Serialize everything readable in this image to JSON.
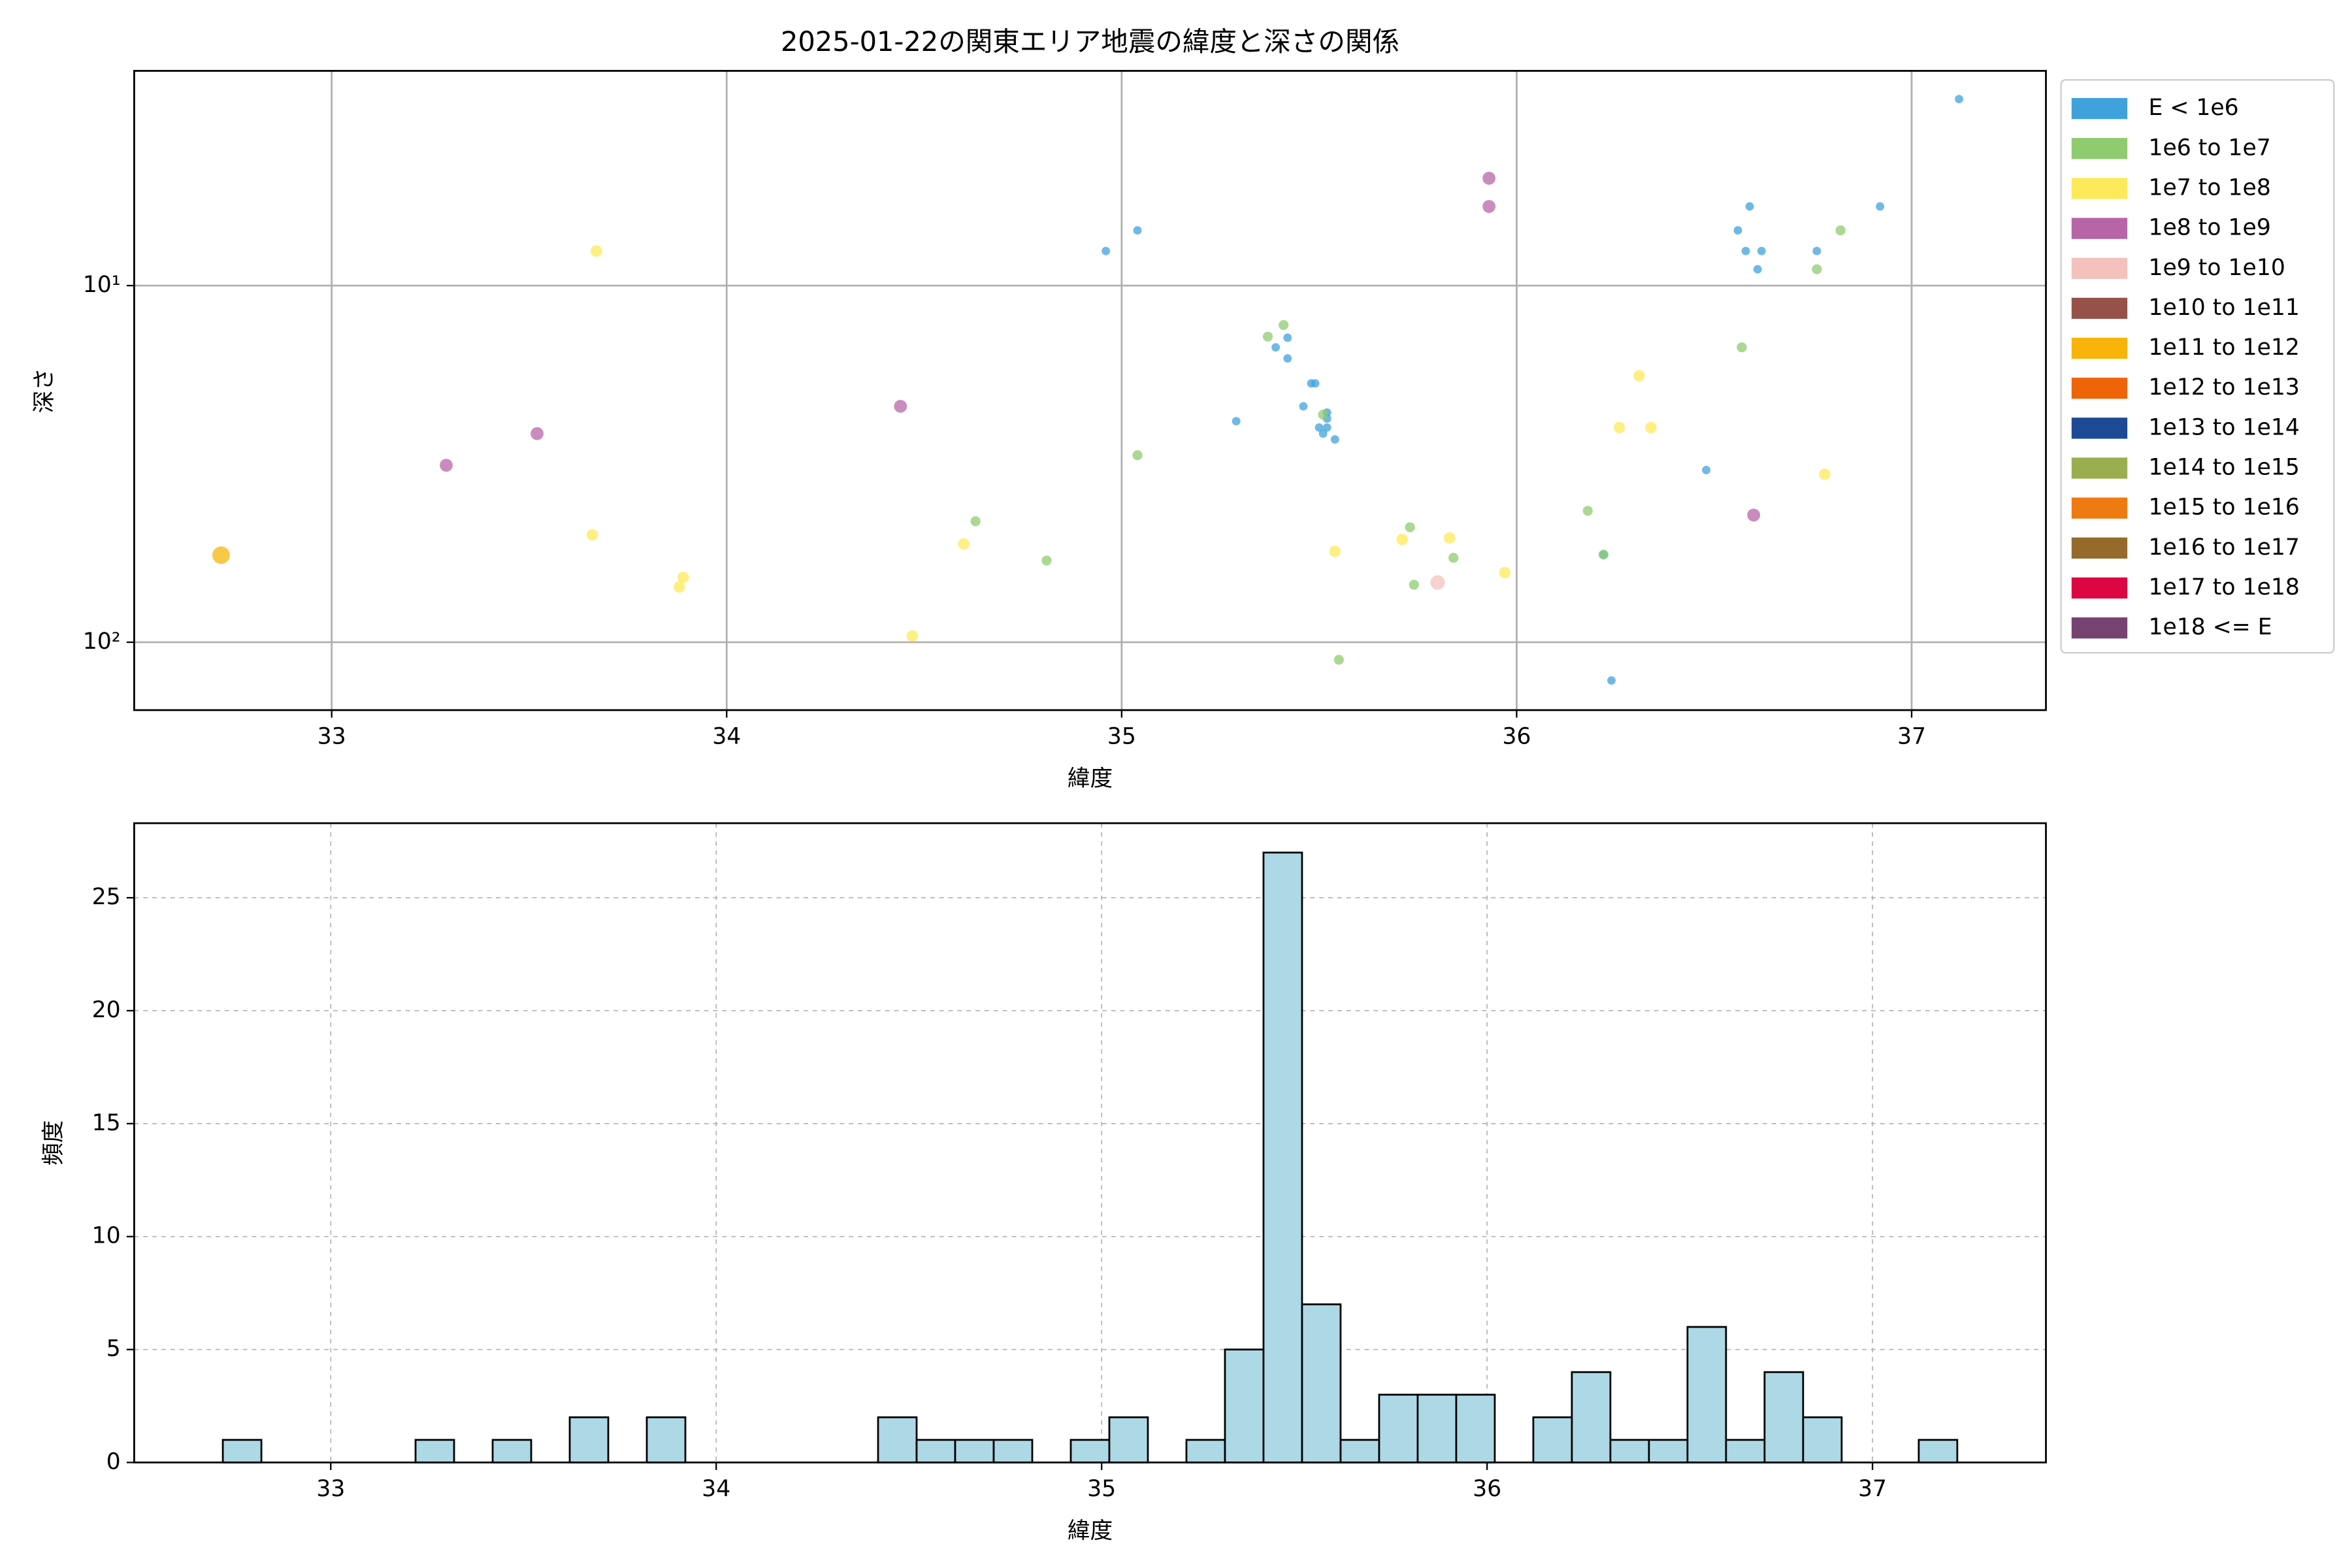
{
  "chart_data": [
    {
      "type": "scatter",
      "title": "2025-01-22の関東エリア地震の緯度と深さの関係",
      "x_label": "緯度",
      "y_label": "深さ",
      "xlim": [
        32.5,
        37.34
      ],
      "xticks": [
        33,
        34,
        35,
        36,
        37
      ],
      "ylim": [
        2.5,
        155
      ],
      "y_inverted": true,
      "log_y": true,
      "yticks": [
        {
          "value": 10,
          "label": "10¹"
        },
        {
          "value": 100,
          "label": "10²"
        }
      ],
      "grid": true,
      "legend": "outside right",
      "series": [
        {
          "name": "E < 1e6",
          "color": "#3fa2dc",
          "x": [
            37.12,
            36.59,
            36.92,
            36.56,
            36.58,
            36.62,
            36.76,
            36.61,
            34.96,
            35.04,
            35.39,
            35.42,
            35.42,
            35.48,
            35.49,
            35.52,
            35.52,
            35.46,
            35.29,
            35.5,
            35.51,
            35.52,
            35.54,
            36.48,
            36.22,
            36.24
          ],
          "values": [
            3.0,
            6.0,
            6.0,
            7.0,
            8.0,
            8.0,
            8.0,
            9.0,
            8.0,
            7.0,
            14.9,
            14,
            16,
            18.8,
            18.8,
            22.7,
            23.6,
            21.8,
            24,
            25,
            26,
            25,
            27,
            32.9,
            56.8,
            128
          ]
        },
        {
          "name": "1e6 to 1e7",
          "color": "#8fcb6f",
          "x": [
            35.37,
            35.41,
            35.04,
            34.63,
            34.81,
            35.51,
            35.73,
            35.74,
            35.84,
            35.55,
            36.18,
            36.22,
            36.57,
            36.76,
            36.82
          ],
          "values": [
            13.9,
            12.9,
            29.9,
            45.8,
            59,
            23,
            47.6,
            69,
            58,
            112,
            42.8,
            56.8,
            14.9,
            9,
            7
          ]
        },
        {
          "name": "1e7 to 1e8",
          "color": "#fdea5a",
          "x": [
            33.67,
            33.66,
            33.89,
            33.88,
            34.6,
            34.47,
            35.54,
            35.71,
            35.83,
            35.97,
            36.31,
            36.26,
            36.34,
            36.78
          ],
          "values": [
            8,
            50,
            65.8,
            70,
            53,
            96,
            55.6,
            51.5,
            51,
            63.8,
            17.9,
            25,
            25,
            33.8
          ]
        },
        {
          "name": "1e8 to 1e9",
          "color": "#b865a8",
          "x": [
            33.29,
            33.52,
            34.44,
            35.93,
            35.93,
            36.6
          ],
          "values": [
            31.9,
            26,
            21.8,
            5.0,
            6.0,
            44
          ]
        },
        {
          "name": "1e9 to 1e10",
          "color": "#f4c1bc",
          "x": [
            35.8
          ],
          "values": [
            68
          ]
        },
        {
          "name": "1e10 to 1e11",
          "color": "#965248",
          "x": [],
          "values": []
        },
        {
          "name": "1e11 to 1e12",
          "color": "#f8b40b",
          "x": [
            32.72
          ],
          "values": [
            57
          ]
        },
        {
          "name": "1e12 to 1e13",
          "color": "#ee6409",
          "x": [],
          "values": []
        },
        {
          "name": "1e13 to 1e14",
          "color": "#1c4a94",
          "x": [],
          "values": []
        },
        {
          "name": "1e14 to 1e15",
          "color": "#9aae50",
          "x": [],
          "values": []
        },
        {
          "name": "1e15 to 1e16",
          "color": "#ee7b11",
          "x": [],
          "values": []
        },
        {
          "name": "1e16 to 1e17",
          "color": "#956a2b",
          "x": [],
          "values": []
        },
        {
          "name": "1e17 to 1e18",
          "color": "#dc0742",
          "x": [],
          "values": []
        },
        {
          "name": "1e18 <= E",
          "color": "#764271",
          "x": [],
          "values": []
        }
      ]
    },
    {
      "type": "histogram",
      "x_label": "緯度",
      "y_label": "頻度",
      "color": "#add8e6",
      "grid": true,
      "grid_style": "dashed",
      "xlim": [
        32.49,
        37.45
      ],
      "xticks": [
        33,
        34,
        35,
        36,
        37
      ],
      "ylim": [
        0,
        28.3
      ],
      "yticks": [
        0,
        5,
        10,
        15,
        20,
        25
      ],
      "bins": [
        32.72,
        32.82,
        32.92,
        33.02,
        33.12,
        33.22,
        33.32,
        33.42,
        33.52,
        33.62,
        33.72,
        33.82,
        33.92,
        34.02,
        34.12,
        34.22,
        34.32,
        34.42,
        34.52,
        34.62,
        34.72,
        34.82,
        34.92,
        35.02,
        35.12,
        35.22,
        35.32,
        35.42,
        35.52,
        35.62,
        35.72,
        35.82,
        35.92,
        36.02,
        36.12,
        36.22,
        36.32,
        36.42,
        36.52,
        36.62,
        36.72,
        36.82,
        36.92,
        37.02,
        37.12,
        37.22
      ],
      "values": [
        1,
        0,
        0,
        0,
        0,
        1,
        0,
        1,
        0,
        2,
        0,
        2,
        0,
        0,
        0,
        0,
        0,
        2,
        1,
        1,
        1,
        0,
        1,
        2,
        0,
        1,
        5,
        27,
        7,
        1,
        3,
        3,
        3,
        0,
        2,
        4,
        1,
        1,
        6,
        1,
        4,
        2,
        0,
        0,
        1
      ]
    }
  ]
}
